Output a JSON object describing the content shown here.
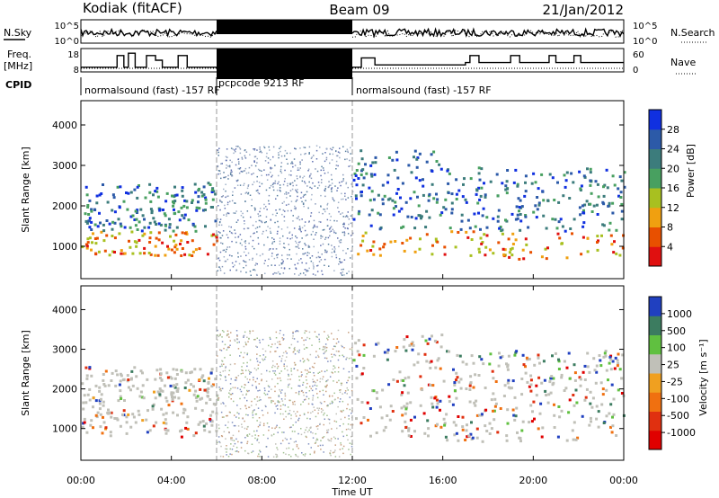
{
  "header": {
    "station": "Kodiak (fitACF)",
    "beam": "Beam 09",
    "date": "21/Jan/2012"
  },
  "strip": {
    "nsky_label": "N.Sky",
    "nsearch_label": "N.Search",
    "freq_label_1": "Freq.",
    "freq_label_2": "[MHz]",
    "nave_label": "Nave",
    "cpid_label": "CPID",
    "noise_ticks": [
      "10^5",
      "10^0"
    ],
    "freq_ticks": [
      "18",
      "8"
    ],
    "nave_ticks": [
      "60",
      "0"
    ],
    "cpid_segments": [
      {
        "label": "normalsound (fast) -157 RF",
        "start": 0,
        "end": 6
      },
      {
        "label": "pcpcode 9213 RF",
        "start": 6,
        "end": 12
      },
      {
        "label": "normalsound (fast) -157 RF",
        "start": 12,
        "end": 24
      }
    ]
  },
  "chart_data": [
    {
      "type": "heatmap",
      "title": "Power",
      "ylabel": "Slant Range [km]",
      "xlabel": "Time UT",
      "xlim": [
        0,
        24
      ],
      "ylim": [
        200,
        4600
      ],
      "y_ticks": [
        1000,
        2000,
        3000,
        4000
      ],
      "colorbar": {
        "label": "Power [dB]",
        "range": [
          0,
          32
        ],
        "ticks": [
          4,
          8,
          12,
          16,
          20,
          24,
          28
        ],
        "colors": [
          "#1030e0",
          "#2c5aa8",
          "#3c7c7c",
          "#48a060",
          "#a8c020",
          "#f0a010",
          "#e85000",
          "#e01010"
        ]
      }
    },
    {
      "type": "heatmap",
      "title": "Velocity",
      "ylabel": "Slant Range [km]",
      "xlabel": "Time UT",
      "xlim": [
        0,
        24
      ],
      "ylim": [
        200,
        4600
      ],
      "y_ticks": [
        1000,
        2000,
        3000,
        4000
      ],
      "colorbar": {
        "label": "Velocity [m s⁻¹]",
        "range": [
          -1200,
          1200
        ],
        "ticks": [
          "1000",
          "500",
          "100",
          "25",
          "-25",
          "-100",
          "-500",
          "-1000"
        ],
        "colors": [
          "#2040c0",
          "#3c7c60",
          "#60c040",
          "#c0c0b8",
          "#f0a020",
          "#f07010",
          "#e03010",
          "#e00000"
        ]
      }
    }
  ],
  "x_axis": {
    "label": "Time UT",
    "ticks": [
      "00:00",
      "04:00",
      "08:00",
      "12:00",
      "16:00",
      "20:00",
      "00:00"
    ],
    "tick_hours": [
      0,
      4,
      8,
      12,
      16,
      20,
      24
    ]
  }
}
